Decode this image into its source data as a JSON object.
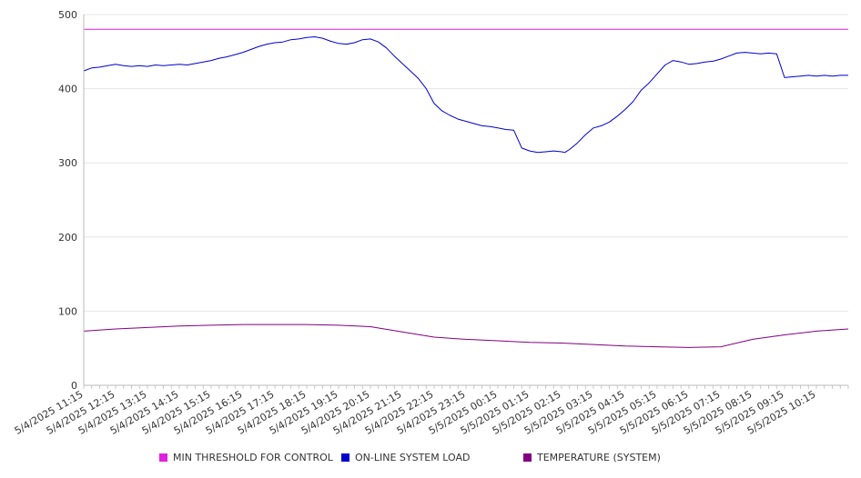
{
  "chart_data": {
    "type": "line",
    "title": "",
    "xlabel": "",
    "ylabel": "",
    "ylim": [
      0,
      500
    ],
    "y_ticks": [
      0,
      100,
      200,
      300,
      400,
      500
    ],
    "x_tick_labels": [
      "5/4/2025 11:15",
      "5/4/2025 12:15",
      "5/4/2025 13:15",
      "5/4/2025 14:15",
      "5/4/2025 15:15",
      "5/4/2025 16:15",
      "5/4/2025 17:15",
      "5/4/2025 18:15",
      "5/4/2025 19:15",
      "5/4/2025 20:15",
      "5/4/2025 21:15",
      "5/4/2025 22:15",
      "5/4/2025 23:15",
      "5/5/2025 00:15",
      "5/5/2025 01:15",
      "5/5/2025 02:15",
      "5/5/2025 03:15",
      "5/5/2025 04:15",
      "5/5/2025 05:15",
      "5/5/2025 06:15",
      "5/5/2025 07:15",
      "5/5/2025 08:15",
      "5/5/2025 09:15",
      "5/5/2025 10:15"
    ],
    "x_range_hours": [
      0,
      24
    ],
    "grid": "horizontal",
    "legend_position": "bottom",
    "series": [
      {
        "name": "MIN THRESHOLD FOR CONTROL",
        "color": "#e020e0",
        "x": [
          0,
          24
        ],
        "values": [
          480,
          480
        ]
      },
      {
        "name": "ON-LINE SYSTEM LOAD",
        "color": "#0000cc",
        "x": [
          0,
          0.25,
          0.5,
          0.75,
          1,
          1.25,
          1.5,
          1.75,
          2,
          2.25,
          2.5,
          2.75,
          3,
          3.25,
          3.5,
          3.75,
          4,
          4.25,
          4.5,
          4.75,
          5,
          5.25,
          5.5,
          5.75,
          6,
          6.25,
          6.5,
          6.75,
          7,
          7.25,
          7.5,
          7.75,
          8,
          8.25,
          8.5,
          8.75,
          9,
          9.25,
          9.5,
          9.75,
          10,
          10.25,
          10.5,
          10.75,
          11,
          11.25,
          11.5,
          11.75,
          12,
          12.25,
          12.5,
          12.75,
          13,
          13.25,
          13.5,
          13.75,
          14,
          14.25,
          14.5,
          14.75,
          15,
          15.1,
          15.25,
          15.5,
          15.75,
          16,
          16.25,
          16.5,
          16.75,
          17,
          17.25,
          17.5,
          17.75,
          18,
          18.25,
          18.5,
          18.75,
          19,
          19.25,
          19.5,
          19.75,
          20,
          20.25,
          20.5,
          20.75,
          21,
          21.25,
          21.5,
          21.75,
          22,
          22.25,
          22.5,
          22.75,
          23,
          23.25,
          23.5,
          23.75,
          24
        ],
        "values": [
          424,
          428,
          429,
          431,
          433,
          431,
          430,
          431,
          430,
          432,
          431,
          432,
          433,
          432,
          434,
          436,
          438,
          441,
          443,
          446,
          449,
          453,
          457,
          460,
          462,
          463,
          466,
          467,
          469,
          470,
          468,
          464,
          461,
          460,
          462,
          466,
          467,
          463,
          455,
          444,
          434,
          424,
          414,
          400,
          380,
          370,
          364,
          359,
          356,
          353,
          350,
          349,
          347,
          345,
          344,
          320,
          316,
          314,
          315,
          316,
          315,
          314,
          318,
          327,
          338,
          347,
          350,
          355,
          363,
          372,
          383,
          398,
          408,
          420,
          432,
          438,
          436,
          433,
          434,
          436,
          437,
          440,
          444,
          448,
          449,
          448,
          447,
          448,
          447,
          415,
          416,
          417,
          418,
          417,
          418,
          417,
          418,
          418
        ]
      },
      {
        "name": "TEMPERATURE (SYSTEM)",
        "color": "#800080",
        "x": [
          0,
          1,
          2,
          3,
          4,
          5,
          6,
          7,
          8,
          9,
          10,
          11,
          12,
          13,
          14,
          15,
          16,
          17,
          18,
          19,
          20,
          21,
          22,
          23,
          24
        ],
        "values": [
          73,
          76,
          78,
          80,
          81,
          82,
          82,
          82,
          81,
          79,
          72,
          65,
          62,
          60,
          58,
          57,
          55,
          53,
          52,
          51,
          52,
          62,
          68,
          73,
          76
        ]
      }
    ]
  }
}
